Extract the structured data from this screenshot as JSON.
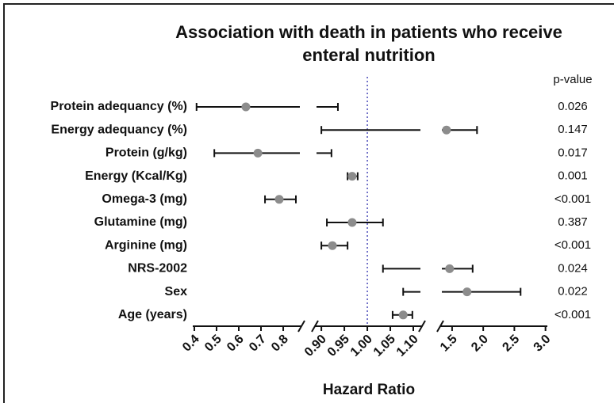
{
  "chart_data": {
    "type": "forest",
    "title": "Association with death in patients who receive enteral nutrition",
    "title_lines": [
      "Association with death in patients who receive",
      "enteral nutrition"
    ],
    "xlabel": "Hazard Ratio",
    "p_value_header": "p-value",
    "categories": [
      "Protein adequancy (%)",
      "Energy adequancy (%)",
      "Protein (g/kg)",
      "Energy (Kcal/Kg)",
      "Omega-3 (mg)",
      "Glutamine (mg)",
      "Arginine (mg)",
      "NRS-2002",
      "Sex",
      "Age (years)"
    ],
    "values": [
      0.632,
      1.41,
      0.686,
      0.967,
      0.782,
      0.967,
      0.924,
      1.46,
      1.74,
      1.078
    ],
    "ci_low": [
      0.41,
      0.9,
      0.49,
      0.957,
      0.718,
      0.912,
      0.9,
      1.034,
      1.078,
      1.055
    ],
    "ci_high": [
      0.936,
      1.9,
      0.922,
      0.979,
      0.857,
      1.034,
      0.957,
      1.83,
      2.6,
      1.098
    ],
    "p_values": [
      "0.026",
      "0.147",
      "0.017",
      "0.001",
      "<0.001",
      "0.387",
      "<0.001",
      "0.024",
      "0.022",
      "<0.001"
    ],
    "point_color": "#8c8c8c",
    "line_color": "#111111",
    "reference": 1,
    "reference_color": "#4a4ab8",
    "xlim_segments": [
      [
        0.393,
        0.882
      ],
      [
        0.886,
        1.119
      ],
      [
        1.31,
        3.03
      ]
    ],
    "xticks": [
      [
        0.4,
        0.5,
        0.6,
        0.7,
        0.8
      ],
      [
        {
          "value": 0.9,
          "label": "0.90"
        },
        0.95,
        {
          "value": 1,
          "label": "1.00"
        },
        1.05,
        {
          "value": 1.1,
          "label": "1.10"
        }
      ],
      [
        1.5,
        {
          "value": 2,
          "label": "2.0"
        },
        2.5,
        {
          "value": 3,
          "label": "3.0"
        }
      ]
    ]
  }
}
